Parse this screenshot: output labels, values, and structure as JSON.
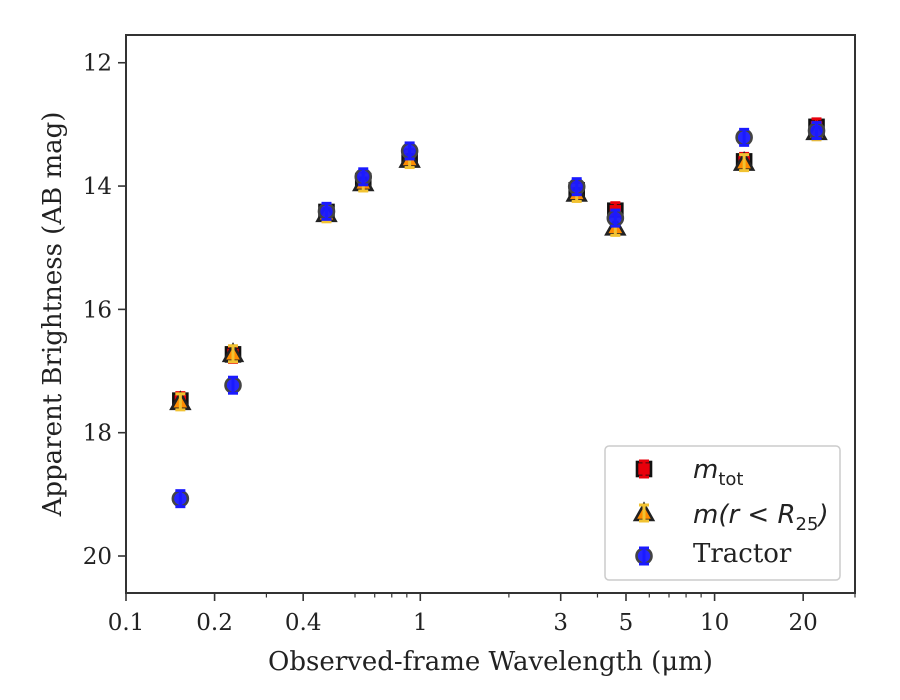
{
  "chart_data": {
    "type": "scatter",
    "title": "",
    "xlabel": "Observed-frame Wavelength (μm)",
    "ylabel": "Apparent Brightness (AB mag)",
    "x_scale": "log",
    "xlim": [
      0.1,
      30
    ],
    "ylim": [
      20.6,
      11.55
    ],
    "y_inverted": true,
    "x_ticks": [
      0.1,
      0.2,
      0.4,
      1,
      3,
      5,
      10,
      20
    ],
    "x_tick_labels": [
      "0.1",
      "0.2",
      "0.4",
      "1",
      "3",
      "5",
      "10",
      "20"
    ],
    "y_ticks": [
      12,
      14,
      16,
      18,
      20
    ],
    "y_tick_labels": [
      "12",
      "14",
      "16",
      "18",
      "20"
    ],
    "grid": false,
    "legend_position": "lower-right",
    "series": [
      {
        "name": "m_tot",
        "legend": {
          "main": "m",
          "sub": "tot"
        },
        "marker": "square",
        "color": "#e8000b",
        "errorbar_color": "#e8000b",
        "x": [
          0.153,
          0.231,
          0.48,
          0.64,
          0.92,
          3.4,
          4.6,
          12.6,
          22.2
        ],
        "y": [
          17.48,
          16.73,
          14.42,
          13.92,
          13.54,
          14.07,
          14.4,
          13.6,
          13.04
        ]
      },
      {
        "name": "m(r < R_25)",
        "legend": {
          "pre": "m(r < R",
          "sub": "25",
          "post": ")"
        },
        "marker": "triangle",
        "color": "#ff8c00",
        "errorbar_color": "#f1c232",
        "x": [
          0.153,
          0.231,
          0.48,
          0.64,
          0.92,
          3.4,
          4.6,
          12.6,
          22.2
        ],
        "y": [
          17.5,
          16.72,
          14.45,
          13.95,
          13.57,
          14.12,
          14.67,
          13.62,
          13.12
        ]
      },
      {
        "name": "Tractor",
        "marker": "circle",
        "color": "#1a1aff",
        "errorbar_color": "#1a1aff",
        "x": [
          0.153,
          0.231,
          0.48,
          0.64,
          0.92,
          3.4,
          4.6,
          12.6,
          22.2
        ],
        "y": [
          19.07,
          17.23,
          14.41,
          13.85,
          13.43,
          14.01,
          14.52,
          13.21,
          13.1
        ]
      }
    ]
  }
}
